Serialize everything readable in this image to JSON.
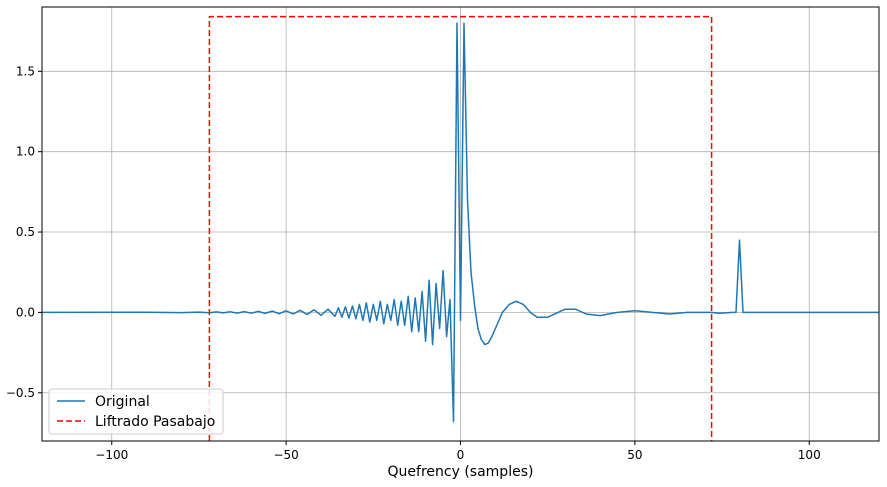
{
  "chart_data": {
    "type": "line",
    "title": "",
    "xlabel": "Quefrency (samples)",
    "ylabel": "",
    "xlim": [
      -120,
      120
    ],
    "ylim": [
      -0.8,
      1.9
    ],
    "xticks": [
      -100,
      -50,
      0,
      50,
      100
    ],
    "yticks": [
      -0.5,
      0.0,
      0.5,
      1.0,
      1.5
    ],
    "xtick_labels": [
      "−100",
      "−50",
      "0",
      "50",
      "100"
    ],
    "ytick_labels": [
      "−0.5",
      "0.0",
      "0.5",
      "1.0",
      "1.5"
    ],
    "grid": true,
    "legend_position": "lower-left",
    "series": [
      {
        "name": "Original",
        "color": "#1f77b4",
        "style": "solid",
        "x": [
          -120,
          -90,
          -80,
          -75,
          -72,
          -70,
          -68,
          -66,
          -64,
          -62,
          -60,
          -58,
          -56,
          -54,
          -52,
          -50,
          -48,
          -46,
          -44,
          -42,
          -40,
          -38,
          -36,
          -35,
          -34,
          -33,
          -32,
          -31,
          -30,
          -29,
          -28,
          -27,
          -26,
          -25,
          -24,
          -23,
          -22,
          -21,
          -20,
          -19,
          -18,
          -17,
          -16,
          -15,
          -14,
          -13,
          -12,
          -11,
          -10,
          -9,
          -8,
          -7,
          -6,
          -5,
          -4,
          -3,
          -2,
          -1,
          0,
          1,
          2,
          3,
          4,
          5,
          6,
          7,
          8,
          9,
          10,
          12,
          14,
          16,
          18,
          20,
          22,
          25,
          28,
          30,
          33,
          36,
          40,
          45,
          50,
          55,
          60,
          65,
          70,
          72,
          74,
          76,
          78,
          79,
          80,
          81,
          82,
          85,
          90,
          100,
          120
        ],
        "y": [
          0,
          0.001,
          -0.001,
          0.002,
          -0.002,
          0.003,
          -0.003,
          0.004,
          -0.004,
          0.005,
          -0.005,
          0.006,
          -0.006,
          0.008,
          -0.008,
          0.01,
          -0.01,
          0.013,
          -0.013,
          0.016,
          -0.018,
          0.02,
          -0.025,
          0.03,
          -0.03,
          0.035,
          -0.035,
          0.04,
          -0.04,
          0.05,
          -0.05,
          0.06,
          -0.06,
          0.05,
          -0.05,
          0.07,
          -0.07,
          0.05,
          -0.05,
          0.08,
          -0.08,
          0.07,
          -0.08,
          0.1,
          -0.12,
          0.09,
          -0.12,
          0.13,
          -0.18,
          0.2,
          -0.2,
          0.18,
          -0.1,
          0.26,
          -0.15,
          0.08,
          -0.68,
          1.8,
          -0.05,
          1.8,
          0.7,
          0.25,
          0.05,
          -0.1,
          -0.17,
          -0.2,
          -0.19,
          -0.15,
          -0.1,
          0.0,
          0.05,
          0.07,
          0.05,
          0.0,
          -0.03,
          -0.03,
          0.0,
          0.02,
          0.02,
          -0.01,
          -0.02,
          0.0,
          0.01,
          0.0,
          -0.01,
          0.0,
          0.0,
          0.0,
          -0.005,
          -0.003,
          0.0,
          0.0,
          0.45,
          0.0,
          0.0,
          0.0,
          0.0,
          0.0,
          0.0
        ]
      },
      {
        "name": "Liftrado Pasabajo",
        "color": "#ff0000",
        "style": "dashed",
        "x": [
          -72,
          -72,
          72,
          72
        ],
        "y": [
          -0.8,
          1.84,
          1.84,
          -0.8
        ]
      }
    ]
  }
}
